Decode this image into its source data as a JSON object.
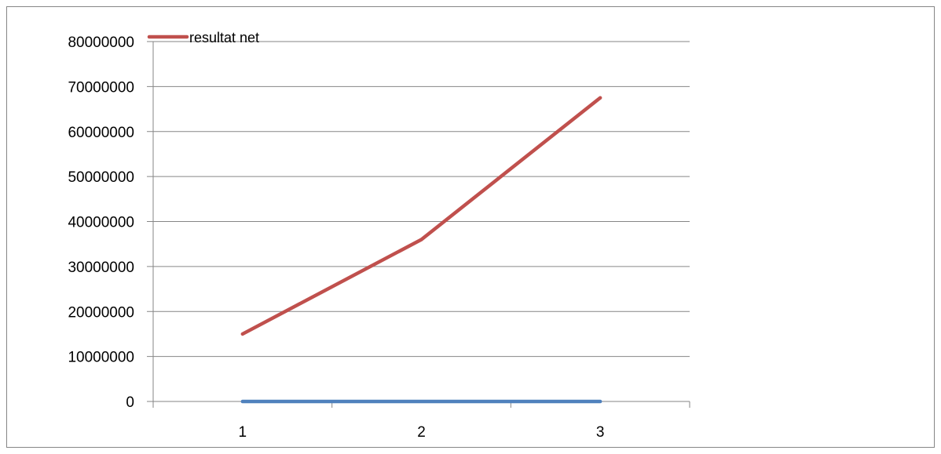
{
  "chart_data": {
    "type": "line",
    "title": "",
    "xlabel": "",
    "ylabel": "",
    "categories": [
      "1",
      "2",
      "3"
    ],
    "series": [
      {
        "name": "resultat net",
        "values": [
          15000000,
          36000000,
          67500000
        ],
        "color": "#C0504D"
      },
      {
        "values": [
          0,
          0,
          0
        ],
        "color": "#4F81BD"
      }
    ],
    "ylim": [
      0,
      80000000
    ],
    "yticks": [
      0,
      10000000,
      20000000,
      30000000,
      40000000,
      50000000,
      60000000,
      70000000,
      80000000
    ],
    "ytick_labels": [
      "0",
      "10000000",
      "20000000",
      "30000000",
      "40000000",
      "50000000",
      "60000000",
      "70000000",
      "80000000"
    ],
    "grid": true,
    "legend": {
      "position": "top-left",
      "entries": [
        "resultat net"
      ]
    },
    "colors": {
      "grid": "#868686",
      "axis": "#868686"
    }
  }
}
